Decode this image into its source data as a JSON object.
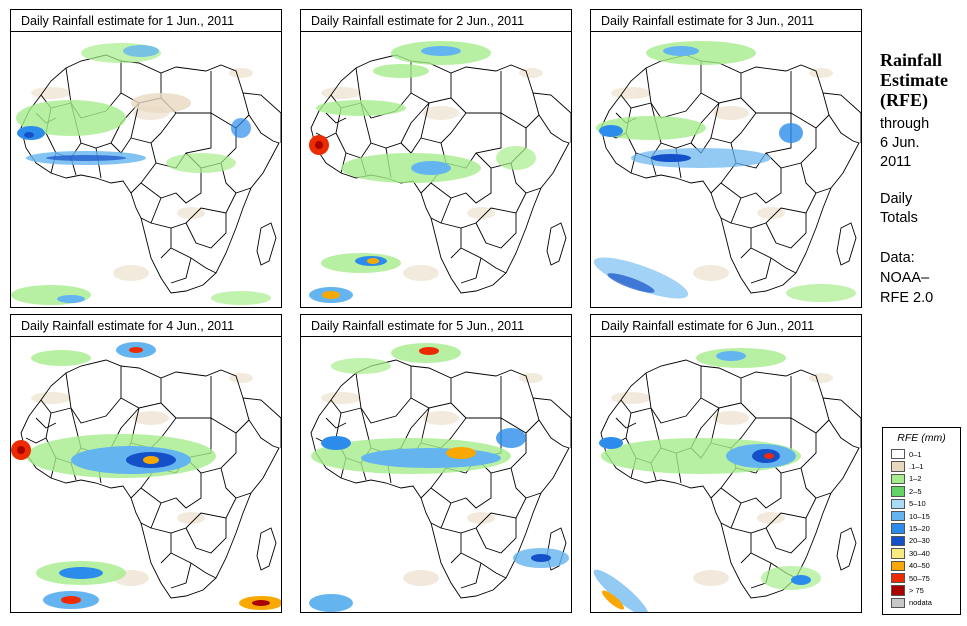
{
  "panels": [
    {
      "title": "Daily Rainfall estimate for  1 Jun., 2011"
    },
    {
      "title": "Daily Rainfall estimate for  2 Jun., 2011"
    },
    {
      "title": "Daily Rainfall estimate for  3 Jun., 2011"
    },
    {
      "title": "Daily Rainfall estimate for  4 Jun., 2011"
    },
    {
      "title": "Daily Rainfall estimate for  5 Jun., 2011"
    },
    {
      "title": "Daily Rainfall estimate for  6 Jun., 2011"
    }
  ],
  "sidebar": {
    "title_line1": "Rainfall",
    "title_line2": "Estimate",
    "title_line3": "(RFE)",
    "through": "through",
    "date_line1": "6 Jun.",
    "date_line2": "2011",
    "totals_line1": "Daily",
    "totals_line2": "Totals",
    "data_line1": "Data:",
    "data_line2": "NOAA–",
    "data_line3": "RFE 2.0"
  },
  "legend": {
    "title": "RFE (mm)",
    "items": [
      {
        "label": "0–1",
        "color": "#ffffff"
      },
      {
        "label": ".1–1",
        "color": "#e8d8c0"
      },
      {
        "label": "1–2",
        "color": "#a6ec8c"
      },
      {
        "label": "2–5",
        "color": "#64d464"
      },
      {
        "label": "5–10",
        "color": "#a8dcf4"
      },
      {
        "label": "10–15",
        "color": "#64b4f0"
      },
      {
        "label": "15–20",
        "color": "#2c8cec"
      },
      {
        "label": "20–30",
        "color": "#1450c8"
      },
      {
        "label": "30–40",
        "color": "#f8ec80"
      },
      {
        "label": "40–50",
        "color": "#f8a800"
      },
      {
        "label": "50–75",
        "color": "#ec2c00"
      },
      {
        "label": "> 75",
        "color": "#a80000"
      },
      {
        "label": "nodata",
        "color": "#c8c8c8"
      }
    ]
  }
}
